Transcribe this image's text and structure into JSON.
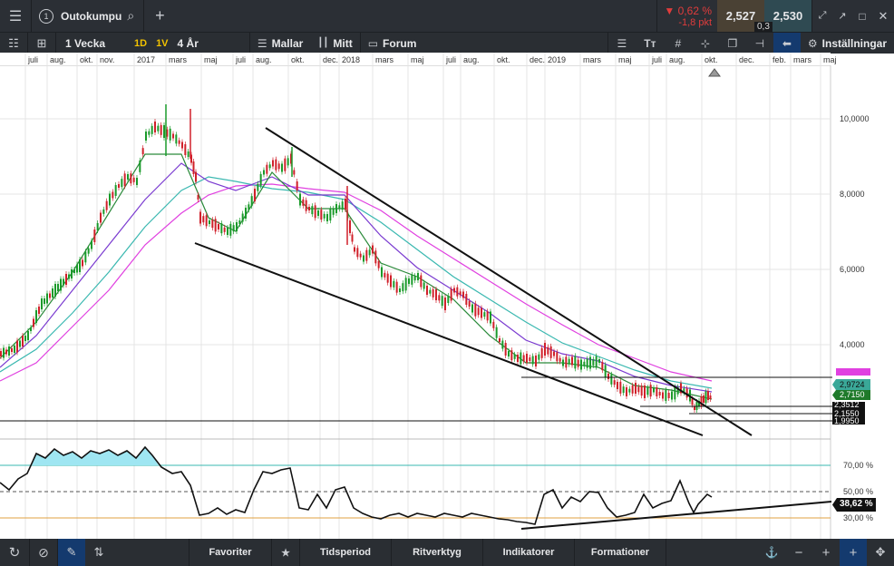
{
  "topbar": {
    "circle_number": "1",
    "instrument": "Outokumpu",
    "change_pct": "▼ 0,62 %",
    "change_pts": "-1,8 pkt",
    "bid": "2,527",
    "ask": "2,530",
    "spread": "0,3"
  },
  "toolbar": {
    "period": "1 Vecka",
    "d1": "1D",
    "w1": "1V",
    "range": "4 År",
    "templates": "Mallar",
    "mine": "Mitt",
    "forum": "Forum",
    "text_tool": "Tᴛ",
    "settings": "Inställningar"
  },
  "x_axis": [
    "juli",
    "aug.",
    "okt.",
    "nov.",
    "2017",
    "mars",
    "maj",
    "juli",
    "aug.",
    "okt.",
    "dec.",
    "2018",
    "mars",
    "maj",
    "juli",
    "aug.",
    "okt.",
    "dec.",
    "2019",
    "mars",
    "maj",
    "juli",
    "aug.",
    "okt.",
    "dec.",
    "feb.",
    "mars",
    "maj"
  ],
  "price_axis": [
    "10,0000",
    "8,0000",
    "6,0000",
    "4,0000"
  ],
  "price_labels": {
    "p1": "2,9724",
    "p2": "2,7150",
    "p3": "2,3512",
    "p4": "2,1550",
    "p5": "1,9950"
  },
  "osc_axis": [
    "70,00 %",
    "50,00 %",
    "30,00 %"
  ],
  "osc_value": "38,62 %",
  "bottombar": {
    "favorites": "Favoriter",
    "timeperiod": "Tidsperiod",
    "drawtools": "Ritverktyg",
    "indicators": "Indikatorer",
    "formations": "Formationer"
  },
  "colors": {
    "up": "#1a9a2a",
    "down": "#d0202a",
    "accent_pink": "#e040e0",
    "teal_box": "#2a8a7a",
    "green_box": "#1f7a2a"
  }
}
